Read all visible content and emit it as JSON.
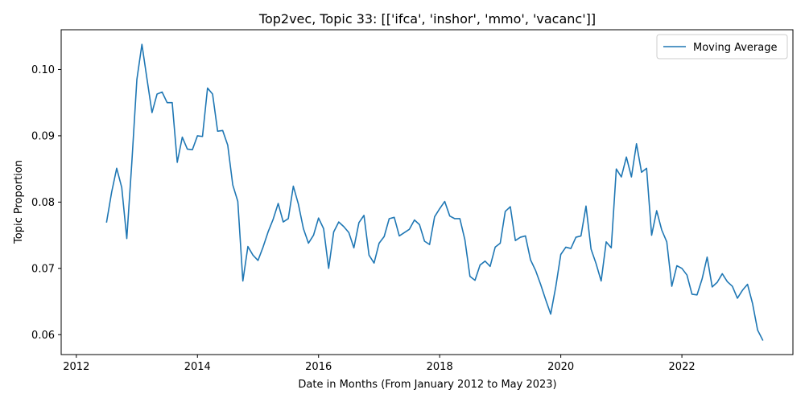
{
  "chart_data": {
    "type": "line",
    "title": "Top2vec, Topic 33: [['ifca', 'inshor', 'mmo', 'vacanc']]",
    "xlabel": "Date in Months (From January 2012 to May 2023)",
    "ylabel": "Topic Proportion",
    "x_ticks": [
      "2012",
      "2014",
      "2016",
      "2018",
      "2020",
      "2022"
    ],
    "y_ticks": [
      "0.06",
      "0.07",
      "0.08",
      "0.09",
      "0.10"
    ],
    "xlim": [
      "2011-10",
      "2023-11"
    ],
    "ylim": [
      0.057,
      0.106
    ],
    "legend_position": "top-right",
    "series": [
      {
        "name": "Moving Average",
        "color": "#1f77b4",
        "points": [
          [
            "2012-07",
            0.077
          ],
          [
            "2012-08",
            0.0815
          ],
          [
            "2012-09",
            0.0851
          ],
          [
            "2012-10",
            0.0822
          ],
          [
            "2012-11",
            0.0745
          ],
          [
            "2012-12",
            0.086
          ],
          [
            "2013-01",
            0.0985
          ],
          [
            "2013-02",
            0.1038
          ],
          [
            "2013-03",
            0.0986
          ],
          [
            "2013-04",
            0.0935
          ],
          [
            "2013-05",
            0.0963
          ],
          [
            "2013-06",
            0.0966
          ],
          [
            "2013-07",
            0.095
          ],
          [
            "2013-08",
            0.095
          ],
          [
            "2013-09",
            0.086
          ],
          [
            "2013-10",
            0.0898
          ],
          [
            "2013-11",
            0.088
          ],
          [
            "2013-12",
            0.0879
          ],
          [
            "2014-01",
            0.09
          ],
          [
            "2014-02",
            0.0899
          ],
          [
            "2014-03",
            0.0972
          ],
          [
            "2014-04",
            0.0963
          ],
          [
            "2014-05",
            0.0907
          ],
          [
            "2014-06",
            0.0908
          ],
          [
            "2014-07",
            0.0886
          ],
          [
            "2014-08",
            0.0826
          ],
          [
            "2014-09",
            0.0801
          ],
          [
            "2014-10",
            0.0681
          ],
          [
            "2014-11",
            0.0733
          ],
          [
            "2014-12",
            0.072
          ],
          [
            "2015-01",
            0.0712
          ],
          [
            "2015-02",
            0.0732
          ],
          [
            "2015-03",
            0.0755
          ],
          [
            "2015-04",
            0.0774
          ],
          [
            "2015-05",
            0.0798
          ],
          [
            "2015-06",
            0.077
          ],
          [
            "2015-07",
            0.0775
          ],
          [
            "2015-08",
            0.0824
          ],
          [
            "2015-09",
            0.0797
          ],
          [
            "2015-10",
            0.076
          ],
          [
            "2015-11",
            0.0738
          ],
          [
            "2015-12",
            0.075
          ],
          [
            "2016-01",
            0.0776
          ],
          [
            "2016-02",
            0.076
          ],
          [
            "2016-03",
            0.07
          ],
          [
            "2016-04",
            0.0755
          ],
          [
            "2016-05",
            0.077
          ],
          [
            "2016-06",
            0.0763
          ],
          [
            "2016-07",
            0.0754
          ],
          [
            "2016-08",
            0.0731
          ],
          [
            "2016-09",
            0.0769
          ],
          [
            "2016-10",
            0.078
          ],
          [
            "2016-11",
            0.072
          ],
          [
            "2016-12",
            0.0708
          ],
          [
            "2017-01",
            0.0738
          ],
          [
            "2017-02",
            0.0748
          ],
          [
            "2017-03",
            0.0775
          ],
          [
            "2017-04",
            0.0777
          ],
          [
            "2017-05",
            0.0749
          ],
          [
            "2017-06",
            0.0754
          ],
          [
            "2017-07",
            0.0759
          ],
          [
            "2017-08",
            0.0773
          ],
          [
            "2017-09",
            0.0766
          ],
          [
            "2017-10",
            0.0741
          ],
          [
            "2017-11",
            0.0736
          ],
          [
            "2017-12",
            0.0778
          ],
          [
            "2018-01",
            0.079
          ],
          [
            "2018-02",
            0.0801
          ],
          [
            "2018-03",
            0.0779
          ],
          [
            "2018-04",
            0.0775
          ],
          [
            "2018-05",
            0.0775
          ],
          [
            "2018-06",
            0.0743
          ],
          [
            "2018-07",
            0.0688
          ],
          [
            "2018-08",
            0.0682
          ],
          [
            "2018-09",
            0.0705
          ],
          [
            "2018-10",
            0.0711
          ],
          [
            "2018-11",
            0.0703
          ],
          [
            "2018-12",
            0.0732
          ],
          [
            "2019-01",
            0.0738
          ],
          [
            "2019-02",
            0.0786
          ],
          [
            "2019-03",
            0.0793
          ],
          [
            "2019-04",
            0.0742
          ],
          [
            "2019-05",
            0.0747
          ],
          [
            "2019-06",
            0.0749
          ],
          [
            "2019-07",
            0.0713
          ],
          [
            "2019-08",
            0.0697
          ],
          [
            "2019-09",
            0.0676
          ],
          [
            "2019-10",
            0.0653
          ],
          [
            "2019-11",
            0.0631
          ],
          [
            "2019-12",
            0.0672
          ],
          [
            "2020-01",
            0.0721
          ],
          [
            "2020-02",
            0.0732
          ],
          [
            "2020-03",
            0.073
          ],
          [
            "2020-04",
            0.0747
          ],
          [
            "2020-05",
            0.0749
          ],
          [
            "2020-06",
            0.0794
          ],
          [
            "2020-07",
            0.0729
          ],
          [
            "2020-08",
            0.0707
          ],
          [
            "2020-09",
            0.0681
          ],
          [
            "2020-10",
            0.074
          ],
          [
            "2020-11",
            0.0731
          ],
          [
            "2020-12",
            0.085
          ],
          [
            "2021-01",
            0.0838
          ],
          [
            "2021-02",
            0.0868
          ],
          [
            "2021-03",
            0.0838
          ],
          [
            "2021-04",
            0.0888
          ],
          [
            "2021-05",
            0.0845
          ],
          [
            "2021-06",
            0.0851
          ],
          [
            "2021-07",
            0.075
          ],
          [
            "2021-08",
            0.0787
          ],
          [
            "2021-09",
            0.0758
          ],
          [
            "2021-10",
            0.074
          ],
          [
            "2021-11",
            0.0673
          ],
          [
            "2021-12",
            0.0704
          ],
          [
            "2022-01",
            0.07
          ],
          [
            "2022-02",
            0.069
          ],
          [
            "2022-03",
            0.0661
          ],
          [
            "2022-04",
            0.066
          ],
          [
            "2022-05",
            0.0684
          ],
          [
            "2022-06",
            0.0717
          ],
          [
            "2022-07",
            0.0672
          ],
          [
            "2022-08",
            0.0679
          ],
          [
            "2022-09",
            0.0692
          ],
          [
            "2022-10",
            0.068
          ],
          [
            "2022-11",
            0.0673
          ],
          [
            "2022-12",
            0.0655
          ],
          [
            "2023-01",
            0.0667
          ],
          [
            "2023-02",
            0.0676
          ],
          [
            "2023-03",
            0.0647
          ],
          [
            "2023-04",
            0.0607
          ],
          [
            "2023-05",
            0.0592
          ]
        ]
      }
    ]
  }
}
